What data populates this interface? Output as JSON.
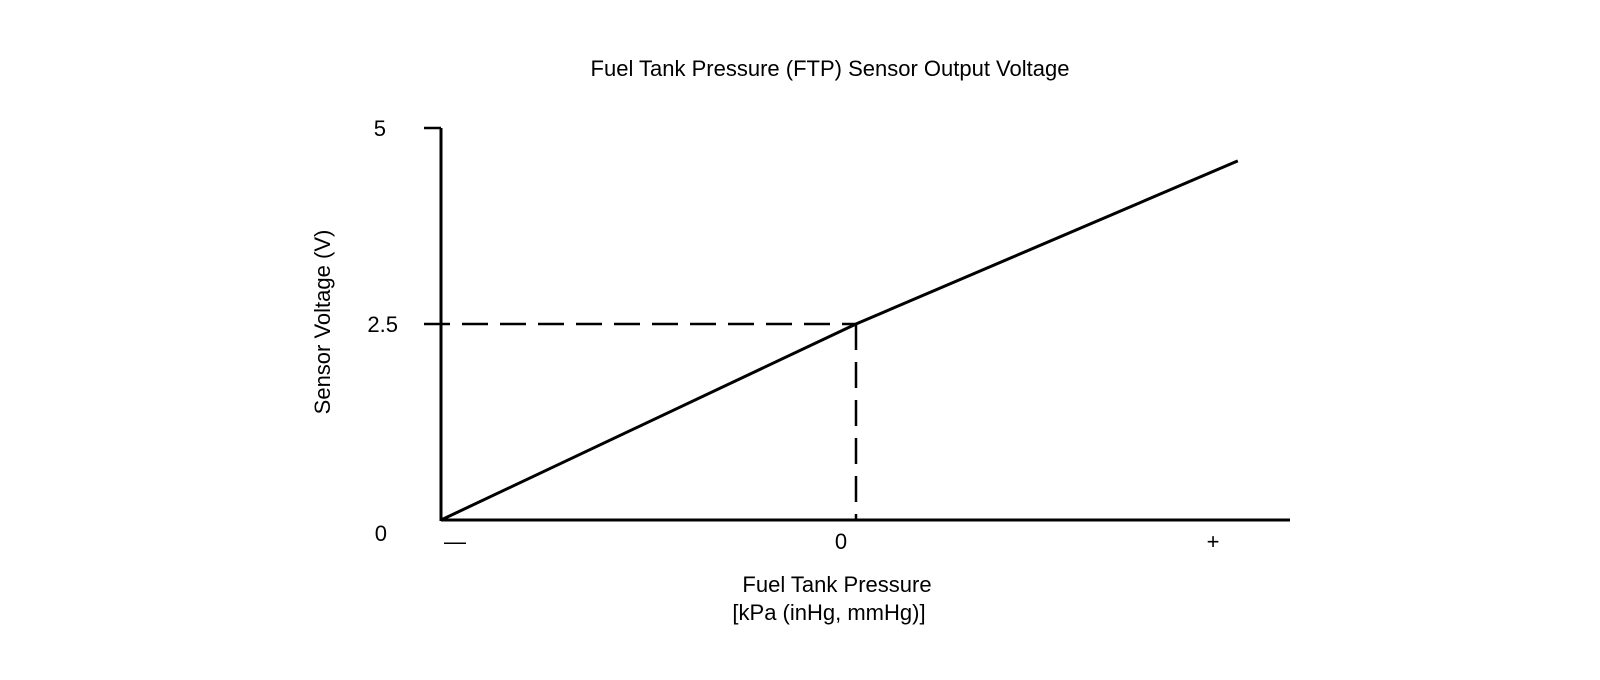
{
  "chart_data": {
    "type": "line",
    "title": "Fuel Tank Pressure (FTP) Sensor Output Voltage",
    "xlabel": "Fuel Tank Pressure",
    "xlabel_unit": "[kPa (inHg, mmHg)]",
    "ylabel": "Sensor Voltage (V)",
    "x_ticks": [
      "—",
      "0",
      "+"
    ],
    "y_ticks": [
      "0",
      "2.5",
      "5"
    ],
    "ylim": [
      0,
      5
    ],
    "xlim": [
      -1,
      1
    ],
    "grid": false,
    "series": [
      {
        "x": [
          -1,
          0,
          0.92
        ],
        "y": [
          0,
          2.5,
          4.58
        ]
      }
    ],
    "reference_point": {
      "x": 0,
      "y": 2.5
    },
    "colors": {
      "line": "#000000",
      "background": "#ffffff"
    }
  }
}
